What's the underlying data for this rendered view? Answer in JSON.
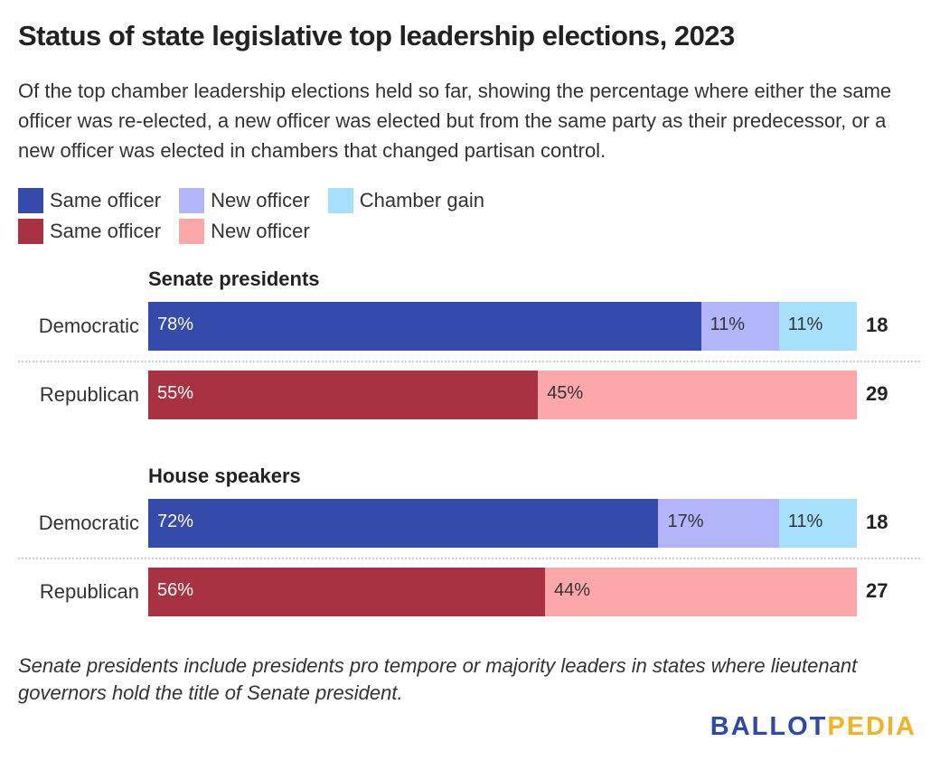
{
  "title": "Status of state legislative top leadership elections, 2023",
  "subtitle": "Of the top chamber leadership elections held so far, showing the percentage where either the same officer was re-elected, a new officer was elected but from the same party as their predecessor, or a new officer was elected in chambers that changed partisan control.",
  "legend": {
    "rows": [
      [
        {
          "label": "Same officer",
          "color": "#344bac"
        },
        {
          "label": "New officer",
          "color": "#b3b5fb"
        },
        {
          "label": "Chamber gain",
          "color": "#a6e0fc"
        }
      ],
      [
        {
          "label": "Same officer",
          "color": "#a83241"
        },
        {
          "label": "New officer",
          "color": "#fca8aa"
        }
      ]
    ]
  },
  "chart_data": {
    "type": "bar",
    "stacked": true,
    "orientation": "horizontal",
    "unit": "%",
    "groups": [
      {
        "title": "Senate presidents",
        "rows": [
          {
            "label": "Democratic",
            "total": "18",
            "segments": [
              {
                "value": 78,
                "label": "78%",
                "color": "#344bac",
                "text_color": "#ffffff"
              },
              {
                "value": 11,
                "label": "11%",
                "color": "#b3b5fb",
                "text_color": "#333333"
              },
              {
                "value": 11,
                "label": "11%",
                "color": "#a6e0fc",
                "text_color": "#333333"
              }
            ]
          },
          {
            "label": "Republican",
            "total": "29",
            "segments": [
              {
                "value": 55,
                "label": "55%",
                "color": "#a83241",
                "text_color": "#ffffff"
              },
              {
                "value": 45,
                "label": "45%",
                "color": "#fca8aa",
                "text_color": "#333333"
              }
            ]
          }
        ]
      },
      {
        "title": "House speakers",
        "rows": [
          {
            "label": "Democratic",
            "total": "18",
            "segments": [
              {
                "value": 72,
                "label": "72%",
                "color": "#344bac",
                "text_color": "#ffffff"
              },
              {
                "value": 17,
                "label": "17%",
                "color": "#b3b5fb",
                "text_color": "#333333"
              },
              {
                "value": 11,
                "label": "11%",
                "color": "#a6e0fc",
                "text_color": "#333333"
              }
            ]
          },
          {
            "label": "Republican",
            "total": "27",
            "segments": [
              {
                "value": 56,
                "label": "56%",
                "color": "#a83241",
                "text_color": "#ffffff"
              },
              {
                "value": 44,
                "label": "44%",
                "color": "#fca8aa",
                "text_color": "#333333"
              }
            ]
          }
        ]
      }
    ]
  },
  "note": "Senate presidents include presidents pro tempore or majority leaders in states where lieutenant governors hold the title of Senate president.",
  "logo": {
    "part1": "BALLOT",
    "part2": "PEDIA"
  }
}
